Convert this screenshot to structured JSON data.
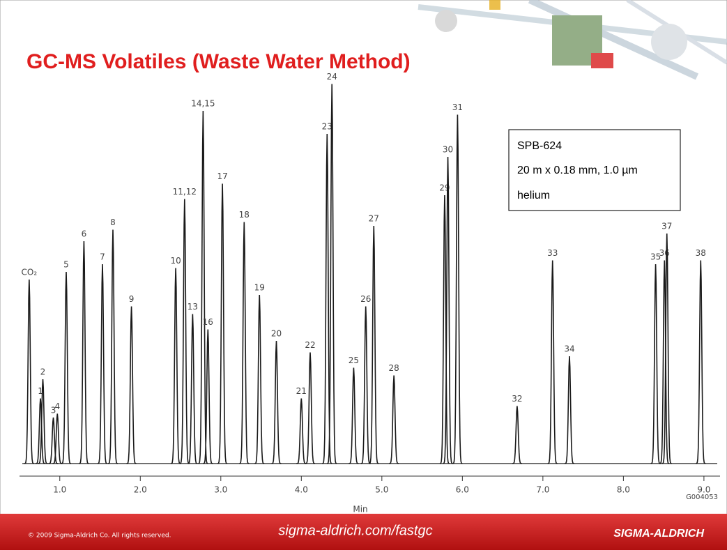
{
  "chart_data": {
    "type": "chromatogram",
    "title": "GC-MS Volatiles (Waste Water Method)",
    "column_info": [
      "SPB-624",
      "20 m x 0.18 mm, 1.0 µm",
      "helium"
    ],
    "xlabel": "Min",
    "figure_id": "G004053",
    "color": "#1a1a1a",
    "xlim": [
      0.5,
      9.2
    ],
    "ylim": [
      0,
      100
    ],
    "xticks": [
      {
        "value": 1,
        "label": "1.0"
      },
      {
        "value": 2,
        "label": "2.0"
      },
      {
        "value": 3,
        "label": "3.0"
      },
      {
        "value": 4,
        "label": "4.0"
      },
      {
        "value": 5,
        "label": "5.0"
      },
      {
        "value": 6,
        "label": "6.0"
      },
      {
        "value": 7,
        "label": "7.0"
      },
      {
        "value": 8,
        "label": "8.0"
      },
      {
        "value": 9,
        "label": "9.0"
      }
    ],
    "peaks": {
      "labels": [
        "CO₂",
        "1",
        "2",
        "3",
        "4",
        "5",
        "6",
        "7",
        "8",
        "9",
        "10",
        "11,12",
        "13",
        "14,15",
        "16",
        "17",
        "18",
        "19",
        "20",
        "21",
        "22",
        "23",
        "24",
        "25",
        "26",
        "27",
        "28",
        "29",
        "30",
        "31",
        "32",
        "33",
        "34",
        "35",
        "36",
        "37",
        "38"
      ],
      "x": [
        0.62,
        0.76,
        0.79,
        0.92,
        0.97,
        1.08,
        1.3,
        1.53,
        1.66,
        1.89,
        2.44,
        2.55,
        2.65,
        2.78,
        2.84,
        3.02,
        3.29,
        3.48,
        3.69,
        4.0,
        4.11,
        4.32,
        4.38,
        4.65,
        4.8,
        4.9,
        5.15,
        5.78,
        5.82,
        5.94,
        6.68,
        7.12,
        7.33,
        8.4,
        8.51,
        8.54,
        8.96
      ],
      "values": [
        48,
        17,
        22,
        12,
        13,
        50,
        58,
        52,
        61,
        41,
        51,
        69,
        39,
        92,
        35,
        73,
        63,
        44,
        32,
        17,
        29,
        86,
        99,
        25,
        41,
        62,
        23,
        70,
        80,
        91,
        15,
        53,
        28,
        52,
        53,
        60,
        53
      ]
    },
    "footer": {
      "copyright": "© 2009 Sigma-Aldrich Co. All rights reserved.",
      "url": "sigma-aldrich.com/fastgc",
      "brand": "SIGMA-ALDRICH"
    }
  }
}
